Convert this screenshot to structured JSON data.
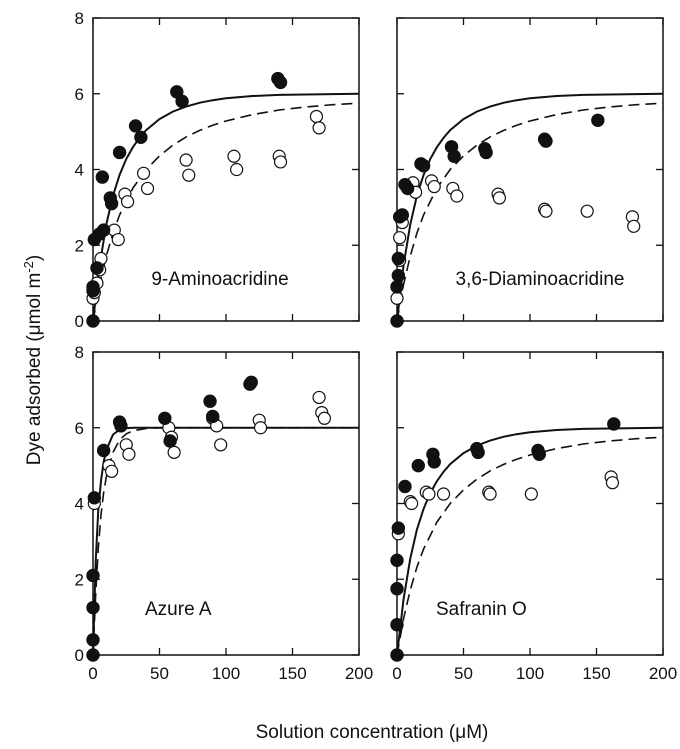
{
  "figure": {
    "xlabel": "Solution concentration (μM)",
    "ylabel": "Dye adsorbed (μmol m",
    "ylabel_sup": "-2",
    "ylabel_close": ")"
  },
  "chart_data": [
    {
      "type": "scatter",
      "panel_label": "9-Aminoacridine",
      "xlim": [
        0,
        200
      ],
      "ylim": [
        0,
        8
      ],
      "xticks": [
        "0",
        "50",
        "100",
        "150",
        "200"
      ],
      "yticks": [
        "0",
        "2",
        "4",
        "6",
        "8"
      ],
      "show_xticklabels": false,
      "show_yticklabels": true,
      "filled": [
        [
          0,
          0
        ],
        [
          0,
          0.8
        ],
        [
          0,
          0.9
        ],
        [
          1,
          2.15
        ],
        [
          3,
          1.4
        ],
        [
          5,
          2.3
        ],
        [
          7,
          3.8
        ],
        [
          8,
          2.4
        ],
        [
          13,
          3.25
        ],
        [
          14,
          3.1
        ],
        [
          20,
          4.45
        ],
        [
          32,
          5.15
        ],
        [
          36,
          4.85
        ],
        [
          63,
          6.05
        ],
        [
          67,
          5.8
        ],
        [
          139,
          6.4
        ],
        [
          141,
          6.3
        ]
      ],
      "open": [
        [
          0,
          0.6
        ],
        [
          1,
          0.75
        ],
        [
          3,
          1.0
        ],
        [
          5,
          1.35
        ],
        [
          6,
          1.65
        ],
        [
          16,
          2.4
        ],
        [
          19,
          2.15
        ],
        [
          24,
          3.35
        ],
        [
          26,
          3.15
        ],
        [
          38,
          3.9
        ],
        [
          41,
          3.5
        ],
        [
          70,
          4.25
        ],
        [
          72,
          3.85
        ],
        [
          106,
          4.35
        ],
        [
          108,
          4.0
        ],
        [
          140,
          4.35
        ],
        [
          141,
          4.2
        ],
        [
          168,
          5.4
        ],
        [
          170,
          5.1
        ]
      ],
      "solid_curve": [
        [
          0,
          0
        ],
        [
          5,
          1.48
        ],
        [
          10,
          2.55
        ],
        [
          15,
          3.31
        ],
        [
          20,
          3.86
        ],
        [
          25,
          4.28
        ],
        [
          30,
          4.59
        ],
        [
          35,
          4.84
        ],
        [
          40,
          5.04
        ],
        [
          50,
          5.33
        ],
        [
          60,
          5.53
        ],
        [
          70,
          5.66
        ],
        [
          80,
          5.76
        ],
        [
          90,
          5.83
        ],
        [
          100,
          5.88
        ],
        [
          120,
          5.94
        ],
        [
          140,
          5.97
        ],
        [
          160,
          5.98
        ],
        [
          180,
          5.99
        ],
        [
          200,
          6.0
        ]
      ],
      "dashed_curve": [
        [
          0,
          0
        ],
        [
          5,
          0.97
        ],
        [
          10,
          1.72
        ],
        [
          15,
          2.32
        ],
        [
          20,
          2.8
        ],
        [
          30,
          3.51
        ],
        [
          40,
          4.0
        ],
        [
          50,
          4.36
        ],
        [
          60,
          4.64
        ],
        [
          70,
          4.86
        ],
        [
          80,
          5.03
        ],
        [
          90,
          5.17
        ],
        [
          100,
          5.28
        ],
        [
          120,
          5.45
        ],
        [
          140,
          5.57
        ],
        [
          160,
          5.65
        ],
        [
          180,
          5.71
        ],
        [
          200,
          5.75
        ]
      ]
    },
    {
      "type": "scatter",
      "panel_label": "3,6-Diaminoacridine",
      "xlim": [
        0,
        200
      ],
      "ylim": [
        0,
        8
      ],
      "xticks": [
        "0",
        "50",
        "100",
        "150",
        "200"
      ],
      "yticks": [
        "0",
        "2",
        "4",
        "6",
        "8"
      ],
      "show_xticklabels": false,
      "show_yticklabels": false,
      "filled": [
        [
          0,
          0
        ],
        [
          0,
          0.9
        ],
        [
          1,
          1.2
        ],
        [
          1,
          1.65
        ],
        [
          2,
          2.75
        ],
        [
          4,
          2.8
        ],
        [
          6,
          3.6
        ],
        [
          8,
          3.5
        ],
        [
          18,
          4.15
        ],
        [
          20,
          4.1
        ],
        [
          41,
          4.6
        ],
        [
          43,
          4.35
        ],
        [
          66,
          4.55
        ],
        [
          67,
          4.45
        ],
        [
          111,
          4.8
        ],
        [
          112,
          4.75
        ],
        [
          151,
          5.3
        ]
      ],
      "open": [
        [
          0,
          0.6
        ],
        [
          0,
          0.9
        ],
        [
          2,
          2.2
        ],
        [
          2,
          1.6
        ],
        [
          4,
          2.6
        ],
        [
          12,
          3.65
        ],
        [
          14,
          3.4
        ],
        [
          26,
          3.7
        ],
        [
          28,
          3.55
        ],
        [
          42,
          3.5
        ],
        [
          45,
          3.3
        ],
        [
          76,
          3.35
        ],
        [
          77,
          3.25
        ],
        [
          111,
          2.95
        ],
        [
          112,
          2.9
        ],
        [
          143,
          2.9
        ],
        [
          177,
          2.75
        ],
        [
          178,
          2.5
        ]
      ],
      "solid_curve": [
        [
          0,
          0
        ],
        [
          5,
          1.48
        ],
        [
          10,
          2.55
        ],
        [
          15,
          3.31
        ],
        [
          20,
          3.86
        ],
        [
          25,
          4.28
        ],
        [
          30,
          4.59
        ],
        [
          35,
          4.84
        ],
        [
          40,
          5.04
        ],
        [
          50,
          5.33
        ],
        [
          60,
          5.53
        ],
        [
          70,
          5.66
        ],
        [
          80,
          5.76
        ],
        [
          90,
          5.83
        ],
        [
          100,
          5.88
        ],
        [
          120,
          5.94
        ],
        [
          140,
          5.97
        ],
        [
          160,
          5.98
        ],
        [
          180,
          5.99
        ],
        [
          200,
          6.0
        ]
      ],
      "dashed_curve": [
        [
          0,
          0
        ],
        [
          5,
          0.97
        ],
        [
          10,
          1.72
        ],
        [
          15,
          2.32
        ],
        [
          20,
          2.8
        ],
        [
          30,
          3.51
        ],
        [
          40,
          4.0
        ],
        [
          50,
          4.36
        ],
        [
          60,
          4.64
        ],
        [
          70,
          4.86
        ],
        [
          80,
          5.03
        ],
        [
          90,
          5.17
        ],
        [
          100,
          5.28
        ],
        [
          120,
          5.45
        ],
        [
          140,
          5.57
        ],
        [
          160,
          5.65
        ],
        [
          180,
          5.71
        ],
        [
          200,
          5.75
        ]
      ]
    },
    {
      "type": "scatter",
      "panel_label": "Azure A",
      "xlim": [
        0,
        200
      ],
      "ylim": [
        0,
        8
      ],
      "xticks": [
        "0",
        "50",
        "100",
        "150",
        "200"
      ],
      "yticks": [
        "0",
        "2",
        "4",
        "6",
        "8"
      ],
      "show_xticklabels": true,
      "show_yticklabels": true,
      "filled": [
        [
          0,
          0
        ],
        [
          0,
          0.4
        ],
        [
          0,
          1.25
        ],
        [
          0,
          2.1
        ],
        [
          1,
          4.15
        ],
        [
          8,
          5.4
        ],
        [
          20,
          6.15
        ],
        [
          21,
          6.05
        ],
        [
          54,
          6.25
        ],
        [
          58,
          5.65
        ],
        [
          88,
          6.7
        ],
        [
          90,
          6.3
        ],
        [
          118,
          7.15
        ],
        [
          119,
          7.2
        ]
      ],
      "open": [
        [
          1,
          4.0
        ],
        [
          12,
          5.0
        ],
        [
          14,
          4.85
        ],
        [
          25,
          5.55
        ],
        [
          27,
          5.3
        ],
        [
          57,
          6.0
        ],
        [
          59,
          5.75
        ],
        [
          61,
          5.35
        ],
        [
          90,
          6.25
        ],
        [
          93,
          6.05
        ],
        [
          96,
          5.55
        ],
        [
          125,
          6.2
        ],
        [
          126,
          6.0
        ],
        [
          170,
          6.8
        ],
        [
          172,
          6.4
        ],
        [
          174,
          6.25
        ]
      ],
      "solid_curve": [
        [
          0,
          0
        ],
        [
          2,
          2.48
        ],
        [
          4,
          3.84
        ],
        [
          6,
          4.6
        ],
        [
          8,
          5.09
        ],
        [
          10,
          5.41
        ],
        [
          15,
          5.82
        ],
        [
          20,
          5.95
        ],
        [
          25,
          5.99
        ],
        [
          30,
          6.0
        ],
        [
          200,
          6.0
        ]
      ],
      "dashed_curve": [
        [
          0,
          0
        ],
        [
          2,
          1.6
        ],
        [
          4,
          2.83
        ],
        [
          6,
          3.7
        ],
        [
          8,
          4.28
        ],
        [
          10,
          4.7
        ],
        [
          15,
          5.35
        ],
        [
          20,
          5.68
        ],
        [
          25,
          5.84
        ],
        [
          30,
          5.92
        ],
        [
          40,
          5.98
        ],
        [
          50,
          6.0
        ],
        [
          200,
          6.0
        ]
      ]
    },
    {
      "type": "scatter",
      "panel_label": "Safranin O",
      "xlim": [
        0,
        200
      ],
      "ylim": [
        0,
        8
      ],
      "xticks": [
        "0",
        "50",
        "100",
        "150",
        "200"
      ],
      "yticks": [
        "0",
        "2",
        "4",
        "6",
        "8"
      ],
      "show_xticklabels": true,
      "show_yticklabels": false,
      "filled": [
        [
          0,
          0
        ],
        [
          0,
          0.8
        ],
        [
          0,
          1.75
        ],
        [
          0,
          2.5
        ],
        [
          1,
          3.35
        ],
        [
          6,
          4.45
        ],
        [
          16,
          5.0
        ],
        [
          27,
          5.3
        ],
        [
          28,
          5.1
        ],
        [
          60,
          5.45
        ],
        [
          61,
          5.35
        ],
        [
          106,
          5.4
        ],
        [
          107,
          5.3
        ],
        [
          163,
          6.1
        ]
      ],
      "open": [
        [
          1,
          3.2
        ],
        [
          10,
          4.05
        ],
        [
          11,
          4.0
        ],
        [
          22,
          4.3
        ],
        [
          24,
          4.25
        ],
        [
          35,
          4.25
        ],
        [
          69,
          4.3
        ],
        [
          70,
          4.25
        ],
        [
          101,
          4.25
        ],
        [
          161,
          4.7
        ],
        [
          162,
          4.55
        ]
      ],
      "solid_curve": [
        [
          0,
          0
        ],
        [
          5,
          1.48
        ],
        [
          10,
          2.55
        ],
        [
          15,
          3.31
        ],
        [
          20,
          3.86
        ],
        [
          25,
          4.28
        ],
        [
          30,
          4.59
        ],
        [
          35,
          4.84
        ],
        [
          40,
          5.04
        ],
        [
          50,
          5.33
        ],
        [
          60,
          5.53
        ],
        [
          70,
          5.66
        ],
        [
          80,
          5.76
        ],
        [
          90,
          5.83
        ],
        [
          100,
          5.88
        ],
        [
          120,
          5.94
        ],
        [
          140,
          5.97
        ],
        [
          160,
          5.98
        ],
        [
          180,
          5.99
        ],
        [
          200,
          6.0
        ]
      ],
      "dashed_curve": [
        [
          0,
          0
        ],
        [
          5,
          0.97
        ],
        [
          10,
          1.72
        ],
        [
          15,
          2.32
        ],
        [
          20,
          2.8
        ],
        [
          30,
          3.51
        ],
        [
          40,
          4.0
        ],
        [
          50,
          4.36
        ],
        [
          60,
          4.64
        ],
        [
          70,
          4.86
        ],
        [
          80,
          5.03
        ],
        [
          90,
          5.17
        ],
        [
          100,
          5.28
        ],
        [
          120,
          5.45
        ],
        [
          140,
          5.57
        ],
        [
          160,
          5.65
        ],
        [
          180,
          5.71
        ],
        [
          200,
          5.75
        ]
      ]
    }
  ]
}
